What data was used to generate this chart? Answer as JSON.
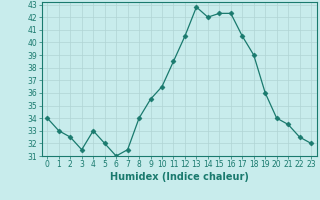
{
  "x": [
    0,
    1,
    2,
    3,
    4,
    5,
    6,
    7,
    8,
    9,
    10,
    11,
    12,
    13,
    14,
    15,
    16,
    17,
    18,
    19,
    20,
    21,
    22,
    23
  ],
  "y": [
    34,
    33,
    32.5,
    31.5,
    33,
    32,
    31,
    31.5,
    34,
    35.5,
    36.5,
    38.5,
    40.5,
    42.8,
    42,
    42.3,
    42.3,
    40.5,
    39,
    36,
    34,
    33.5,
    32.5,
    32
  ],
  "line_color": "#1a7a6e",
  "marker": "D",
  "marker_size": 2.5,
  "bg_color": "#c8ecec",
  "grid_color": "#b0d4d4",
  "xlabel": "Humidex (Indice chaleur)",
  "xlim": [
    -0.5,
    23.5
  ],
  "ylim": [
    31,
    43.2
  ],
  "yticks": [
    31,
    32,
    33,
    34,
    35,
    36,
    37,
    38,
    39,
    40,
    41,
    42,
    43
  ],
  "xticks": [
    0,
    1,
    2,
    3,
    4,
    5,
    6,
    7,
    8,
    9,
    10,
    11,
    12,
    13,
    14,
    15,
    16,
    17,
    18,
    19,
    20,
    21,
    22,
    23
  ],
  "tick_color": "#1a7a6e",
  "label_fontsize": 5.5,
  "xlabel_fontsize": 7
}
